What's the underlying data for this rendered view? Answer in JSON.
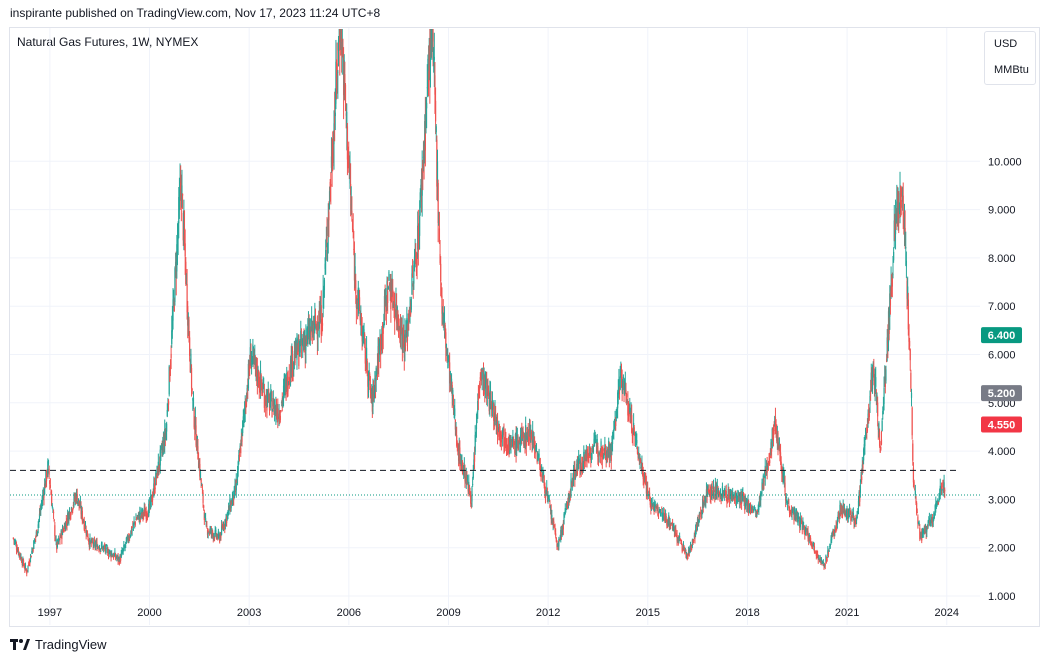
{
  "header": {
    "publisher": "inspirante published on TradingView.com, Nov 17, 2023 11:24 UTC+8",
    "symbol": "Natural Gas Futures, 1W, NYMEX"
  },
  "units": {
    "currency": "USD",
    "unit": "MMBtu"
  },
  "brand": {
    "name": "TradingView"
  },
  "colors": {
    "up": "#26a69a",
    "down": "#ef5350",
    "hline": "#131722",
    "dotted": "#089981"
  },
  "chart_data": {
    "type": "candlestick",
    "interval": "1W",
    "x_range": [
      1995.8,
      2025.0
    ],
    "ylim": [
      1.0,
      11.0
    ],
    "y_ticks": [
      "1.000",
      "2.000",
      "3.000",
      "4.000",
      "5.000",
      "6.000",
      "7.000",
      "8.000",
      "9.000",
      "10.000"
    ],
    "x_ticks": [
      {
        "label": "1997",
        "t": 1997.0
      },
      {
        "label": "2000",
        "t": 2000.0
      },
      {
        "label": "2003",
        "t": 2003.0
      },
      {
        "label": "2006",
        "t": 2006.0
      },
      {
        "label": "2009",
        "t": 2009.0
      },
      {
        "label": "2012",
        "t": 2012.0
      },
      {
        "label": "2015",
        "t": 2015.0
      },
      {
        "label": "2018",
        "t": 2018.0
      },
      {
        "label": "2021",
        "t": 2021.0
      },
      {
        "label": "2024",
        "t": 2024.0
      }
    ],
    "price_path": [
      [
        1995.9,
        2.2
      ],
      [
        1996.3,
        1.5
      ],
      [
        1996.6,
        2.3
      ],
      [
        1996.95,
        3.7
      ],
      [
        1997.2,
        2.0
      ],
      [
        1997.8,
        3.1
      ],
      [
        1998.2,
        2.1
      ],
      [
        1998.6,
        2.0
      ],
      [
        1999.1,
        1.75
      ],
      [
        1999.6,
        2.6
      ],
      [
        2000.0,
        2.8
      ],
      [
        2000.5,
        4.4
      ],
      [
        2000.95,
        9.6
      ],
      [
        2001.3,
        5.0
      ],
      [
        2001.7,
        2.4
      ],
      [
        2002.1,
        2.2
      ],
      [
        2002.6,
        3.2
      ],
      [
        2003.05,
        6.0
      ],
      [
        2003.5,
        5.1
      ],
      [
        2003.9,
        4.8
      ],
      [
        2004.3,
        5.9
      ],
      [
        2004.8,
        6.4
      ],
      [
        2005.2,
        6.8
      ],
      [
        2005.75,
        13.0
      ],
      [
        2006.2,
        7.5
      ],
      [
        2006.7,
        5.0
      ],
      [
        2007.2,
        7.5
      ],
      [
        2007.7,
        6.2
      ],
      [
        2008.1,
        8.5
      ],
      [
        2008.5,
        13.0
      ],
      [
        2008.8,
        7.0
      ],
      [
        2009.3,
        4.0
      ],
      [
        2009.7,
        3.0
      ],
      [
        2009.95,
        5.7
      ],
      [
        2010.5,
        4.5
      ],
      [
        2010.9,
        4.1
      ],
      [
        2011.5,
        4.4
      ],
      [
        2011.9,
        3.3
      ],
      [
        2012.3,
        2.0
      ],
      [
        2012.8,
        3.6
      ],
      [
        2013.4,
        4.1
      ],
      [
        2013.9,
        4.0
      ],
      [
        2014.2,
        5.6
      ],
      [
        2014.7,
        4.0
      ],
      [
        2015.1,
        2.9
      ],
      [
        2015.7,
        2.5
      ],
      [
        2016.2,
        1.8
      ],
      [
        2016.8,
        3.2
      ],
      [
        2017.3,
        3.1
      ],
      [
        2017.8,
        3.0
      ],
      [
        2018.3,
        2.7
      ],
      [
        2018.85,
        4.6
      ],
      [
        2019.2,
        2.9
      ],
      [
        2019.8,
        2.3
      ],
      [
        2020.3,
        1.6
      ],
      [
        2020.8,
        2.8
      ],
      [
        2021.3,
        2.6
      ],
      [
        2021.8,
        5.8
      ],
      [
        2022.0,
        4.0
      ],
      [
        2022.45,
        8.7
      ],
      [
        2022.65,
        9.5
      ],
      [
        2022.9,
        6.0
      ],
      [
        2023.0,
        3.4
      ],
      [
        2023.2,
        2.2
      ],
      [
        2023.6,
        2.6
      ],
      [
        2023.88,
        3.4
      ],
      [
        2023.95,
        3.05
      ]
    ],
    "horizontal_lines": [
      {
        "price": 3.6,
        "style": "dashed"
      },
      {
        "price": 3.09,
        "style": "dotted"
      }
    ],
    "price_labels": [
      {
        "value": "6.400",
        "y": 6.4,
        "color": "#089981"
      },
      {
        "value": "5.200",
        "y": 5.2,
        "color": "#787b86"
      },
      {
        "value": "4.550",
        "y": 4.55,
        "color": "#f23645"
      }
    ]
  }
}
